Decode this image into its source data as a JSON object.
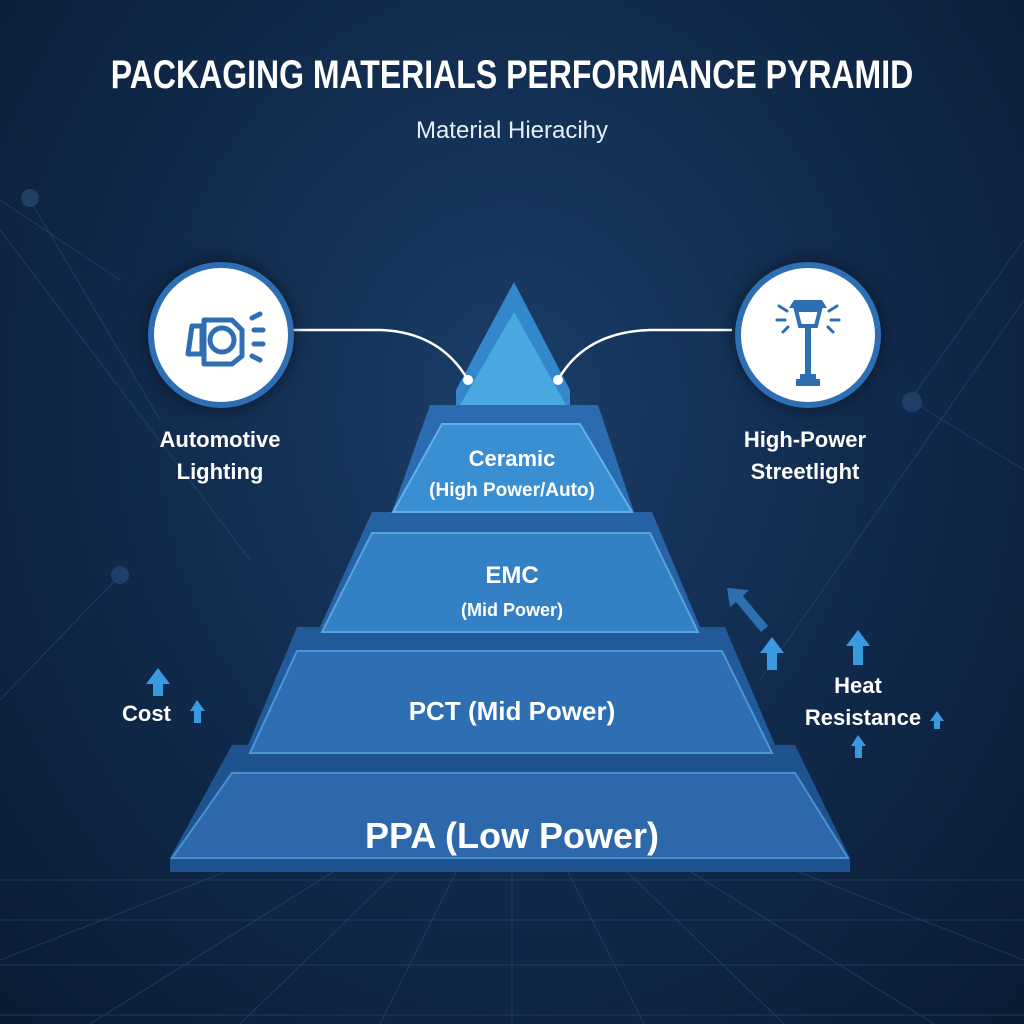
{
  "header": {
    "title": "PACKAGING MATERIALS PERFORMANCE PYRAMID",
    "subtitle": "Material Hieracihy"
  },
  "applications": [
    {
      "line1": "Automotive",
      "line2": "Lighting",
      "icon": "headlight-icon"
    },
    {
      "line1": "High-Power",
      "line2": "Streetlight",
      "icon": "streetlight-icon"
    }
  ],
  "tiers": [
    {
      "name": "Ceramic",
      "detail": "(High Power/Auto)"
    },
    {
      "name": "EMC",
      "detail": "(Mid Power)"
    },
    {
      "name": "PCT (Mid Power)"
    },
    {
      "name": "PPA (Low Power)"
    }
  ],
  "axes": {
    "cost": "Cost",
    "heat_line1": "Heat",
    "heat_line2": "Resistance"
  },
  "colors": {
    "background": "#10294a",
    "tier_face": "#2f76bd",
    "apex": "#4aa8e0",
    "accent": "#3a8fd6"
  }
}
